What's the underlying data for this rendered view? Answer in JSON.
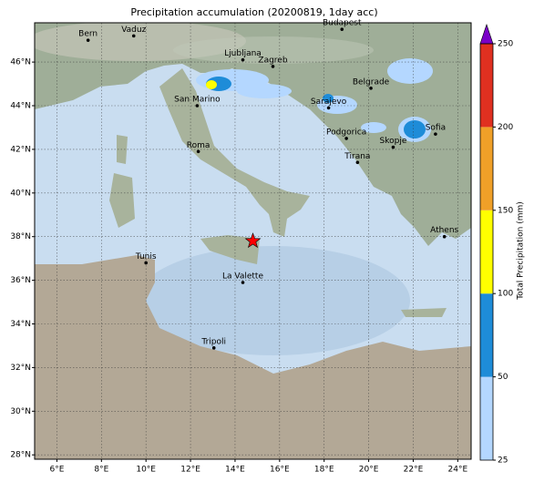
{
  "title": "Precipitation accumulation (20200819, 1day acc)",
  "map": {
    "lon_range": [
      5,
      24.6
    ],
    "lat_range": [
      27.8,
      47.8
    ],
    "lon_ticks": [
      {
        "value": 6,
        "label": "6°E"
      },
      {
        "value": 8,
        "label": "8°E"
      },
      {
        "value": 10,
        "label": "10°E"
      },
      {
        "value": 12,
        "label": "12°E"
      },
      {
        "value": 14,
        "label": "14°E"
      },
      {
        "value": 16,
        "label": "16°E"
      },
      {
        "value": 18,
        "label": "18°E"
      },
      {
        "value": 20,
        "label": "20°E"
      },
      {
        "value": 22,
        "label": "22°E"
      },
      {
        "value": 24,
        "label": "24°E"
      }
    ],
    "lat_ticks": [
      {
        "value": 28,
        "label": "28°N"
      },
      {
        "value": 30,
        "label": "30°N"
      },
      {
        "value": 32,
        "label": "32°N"
      },
      {
        "value": 34,
        "label": "34°N"
      },
      {
        "value": 36,
        "label": "36°N"
      },
      {
        "value": 38,
        "label": "38°N"
      },
      {
        "value": 40,
        "label": "40°N"
      },
      {
        "value": 42,
        "label": "42°N"
      },
      {
        "value": 44,
        "label": "44°N"
      },
      {
        "value": 46,
        "label": "46°N"
      }
    ],
    "cities": [
      {
        "name": "Bern",
        "lon": 7.4,
        "lat": 47.0
      },
      {
        "name": "Vaduz",
        "lon": 9.45,
        "lat": 47.2
      },
      {
        "name": "Ljubljana",
        "lon": 14.35,
        "lat": 46.1
      },
      {
        "name": "Zagreb",
        "lon": 15.7,
        "lat": 45.8
      },
      {
        "name": "Budapest",
        "lon": 18.8,
        "lat": 47.5
      },
      {
        "name": "Belgrade",
        "lon": 20.1,
        "lat": 44.8
      },
      {
        "name": "San Marino",
        "lon": 12.3,
        "lat": 44.0
      },
      {
        "name": "Sarajevo",
        "lon": 18.2,
        "lat": 43.9
      },
      {
        "name": "Podgorica",
        "lon": 19.0,
        "lat": 42.5
      },
      {
        "name": "Sofia",
        "lon": 23.0,
        "lat": 42.7
      },
      {
        "name": "Skopje",
        "lon": 21.1,
        "lat": 42.1
      },
      {
        "name": "Tirana",
        "lon": 19.5,
        "lat": 41.4
      },
      {
        "name": "Roma",
        "lon": 12.35,
        "lat": 41.9
      },
      {
        "name": "Athens",
        "lon": 23.4,
        "lat": 38.0
      },
      {
        "name": "Tunis",
        "lon": 10.0,
        "lat": 36.8
      },
      {
        "name": "La Valette",
        "lon": 14.35,
        "lat": 35.9
      },
      {
        "name": "Tripoli",
        "lon": 13.05,
        "lat": 32.9
      }
    ],
    "event": {
      "lon": 14.8,
      "lat": 37.8,
      "color": "#ff0000"
    }
  },
  "colorbar": {
    "label": "Total Precipitation (mm)",
    "ticks": [
      25,
      50,
      100,
      150,
      200,
      250
    ],
    "colors": [
      "#b4d7ff",
      "#1e8cd8",
      "#ffff00",
      "#f0a028",
      "#e03020"
    ],
    "over_color": "#7a00c8"
  }
}
